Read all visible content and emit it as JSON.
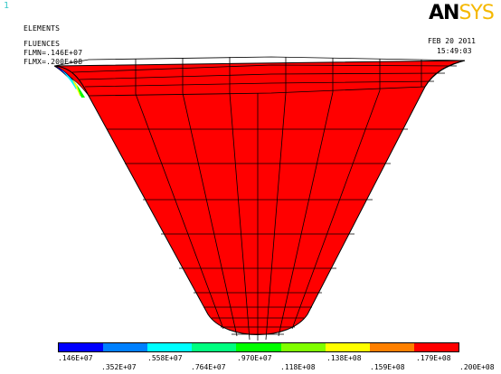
{
  "window_number": "1",
  "header": {
    "line1": "ELEMENTS",
    "line2": "FLUENCES",
    "line3": "FLMN=.146E+07",
    "line4": "FLMX=.200E+08"
  },
  "logo": {
    "part1": "AN",
    "part2": "SYS"
  },
  "date": "FEB 20 2011",
  "time": "15:49:03",
  "contour_colors": [
    "#0000ff",
    "#0080ff",
    "#00ffff",
    "#00ff80",
    "#00ff00",
    "#80ff00",
    "#ffff00",
    "#ff8000",
    "#ff0000"
  ],
  "model_color": "#ff0000",
  "legend_labels_top": [
    ".146E+07",
    ".558E+07",
    ".970E+07",
    ".138E+08",
    ".179E+08"
  ],
  "legend_labels_bottom": [
    ".352E+07",
    ".764E+07",
    ".118E+08",
    ".159E+08",
    ".200E+08"
  ]
}
